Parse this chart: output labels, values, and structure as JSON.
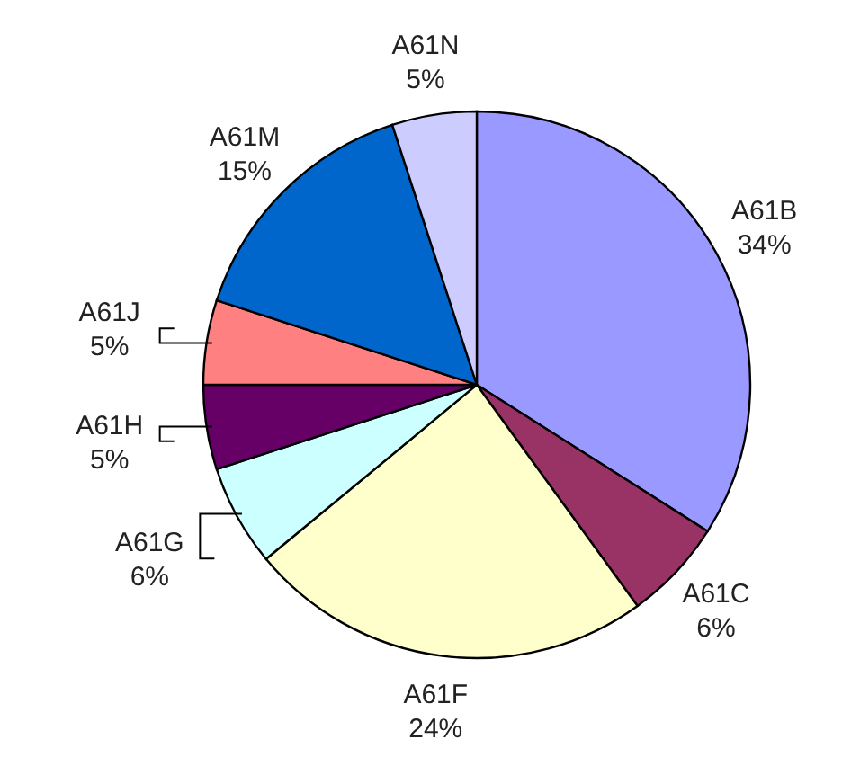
{
  "chart_data": {
    "type": "pie",
    "categories": [
      "A61B",
      "A61C",
      "A61F",
      "A61G",
      "A61H",
      "A61J",
      "A61M",
      "A61N"
    ],
    "values": [
      34,
      6,
      24,
      6,
      5,
      5,
      15,
      5
    ],
    "value_labels": [
      "34%",
      "6%",
      "24%",
      "6%",
      "5%",
      "5%",
      "15%",
      "5%"
    ],
    "colors": [
      "#9999ff",
      "#993366",
      "#ffffcc",
      "#ccffff",
      "#660066",
      "#ff8080",
      "#0066cc",
      "#ccccff"
    ]
  }
}
